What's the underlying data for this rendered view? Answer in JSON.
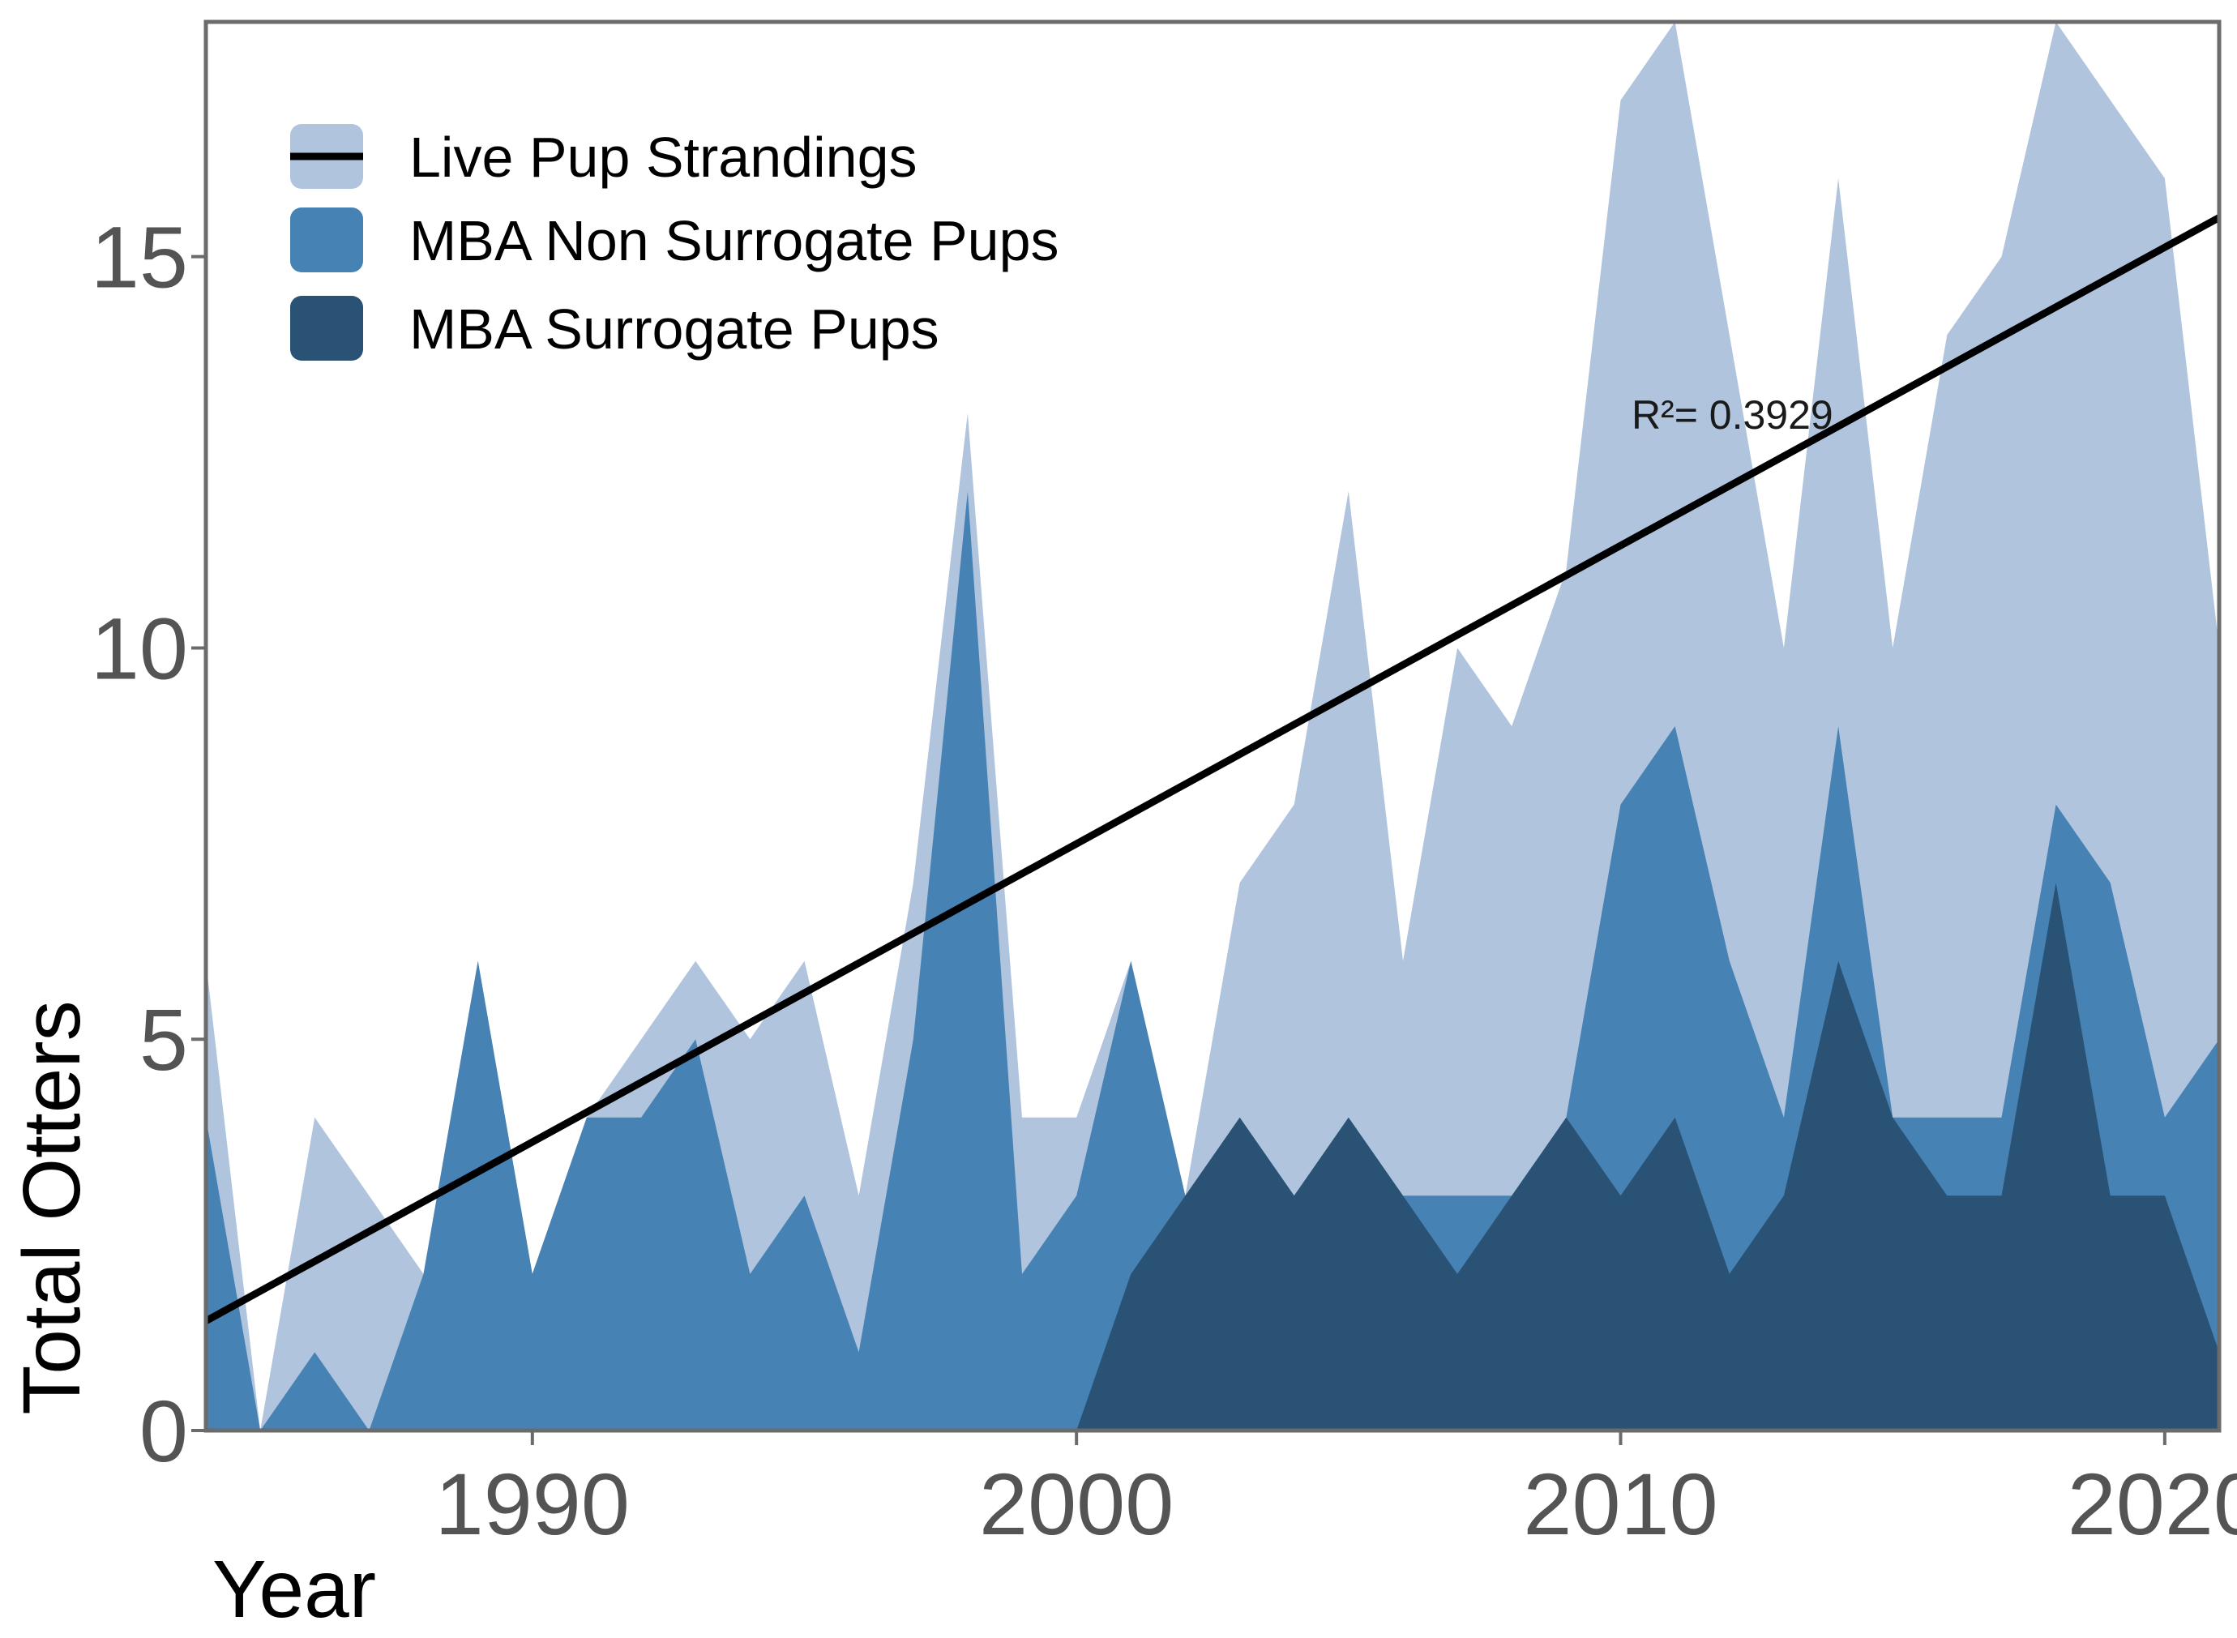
{
  "chart_data": {
    "type": "area",
    "title": "",
    "xlabel": "Year",
    "ylabel": "Total Otters",
    "xlim": [
      1984,
      2021
    ],
    "ylim": [
      0,
      18
    ],
    "xticks": [
      1990,
      2000,
      2010,
      2020
    ],
    "xtick_labels": [
      "1990",
      "2000",
      "2010",
      "2020"
    ],
    "yticks": [
      0,
      5,
      10,
      15
    ],
    "ytick_labels": [
      "0",
      "5",
      "10",
      "15"
    ],
    "grid": false,
    "legend_position": "top-left",
    "colors": {
      "live": "#b0c4de",
      "nonsurrogate": "#4682b4",
      "surrogate": "#2a5275",
      "trend": "#000000"
    },
    "series": [
      {
        "name": "Live Pup Strandings",
        "key": "live",
        "x": [
          1984,
          1985,
          1986,
          1987,
          1988,
          1989,
          1990,
          1991,
          1992,
          1993,
          1994,
          1995,
          1996,
          1997,
          1998,
          1999,
          2000,
          2001,
          2002,
          2003,
          2004,
          2005,
          2006,
          2007,
          2008,
          2009,
          2010,
          2011,
          2012,
          2013,
          2014,
          2015,
          2016,
          2017,
          2018,
          2019,
          2020,
          2021
        ],
        "values": [
          6,
          0,
          4,
          3,
          2,
          6,
          2,
          4,
          5,
          6,
          5,
          6,
          3,
          7,
          13,
          4,
          4,
          6,
          3,
          7,
          8,
          12,
          6,
          10,
          9,
          11,
          17,
          18,
          14,
          10,
          16,
          10,
          14,
          15,
          18,
          17,
          16,
          10
        ]
      },
      {
        "name": "MBA Non Surrogate Pups",
        "key": "nonsurrogate",
        "x": [
          1984,
          1985,
          1986,
          1987,
          1988,
          1989,
          1990,
          1991,
          1992,
          1993,
          1994,
          1995,
          1996,
          1997,
          1998,
          1999,
          2000,
          2001,
          2002,
          2003,
          2004,
          2005,
          2006,
          2007,
          2008,
          2009,
          2010,
          2011,
          2012,
          2013,
          2014,
          2015,
          2016,
          2017,
          2018,
          2019,
          2020,
          2021
        ],
        "values": [
          4,
          0,
          1,
          0,
          2,
          6,
          2,
          4,
          4,
          5,
          2,
          3,
          1,
          5,
          12,
          2,
          3,
          6,
          3,
          4,
          3,
          4,
          3,
          3,
          3,
          4,
          8,
          9,
          6,
          4,
          9,
          4,
          4,
          4,
          8,
          7,
          4,
          5
        ]
      },
      {
        "name": "MBA Surrogate Pups",
        "key": "surrogate",
        "x": [
          2000,
          2001,
          2002,
          2003,
          2004,
          2005,
          2006,
          2007,
          2008,
          2009,
          2010,
          2011,
          2012,
          2013,
          2014,
          2015,
          2016,
          2017,
          2018,
          2019,
          2020,
          2021
        ],
        "values": [
          0,
          2,
          3,
          4,
          3,
          4,
          3,
          2,
          3,
          4,
          3,
          4,
          2,
          3,
          6,
          4,
          3,
          3,
          7,
          3,
          3,
          1
        ]
      }
    ],
    "trendline": {
      "name": "Live Pup Strandings trend",
      "x": [
        1984,
        2021
      ],
      "y": [
        1.4,
        15.5
      ],
      "r_squared_label": "R²= 0.3929",
      "label_x": 2010.2,
      "label_y": 12.8
    }
  }
}
